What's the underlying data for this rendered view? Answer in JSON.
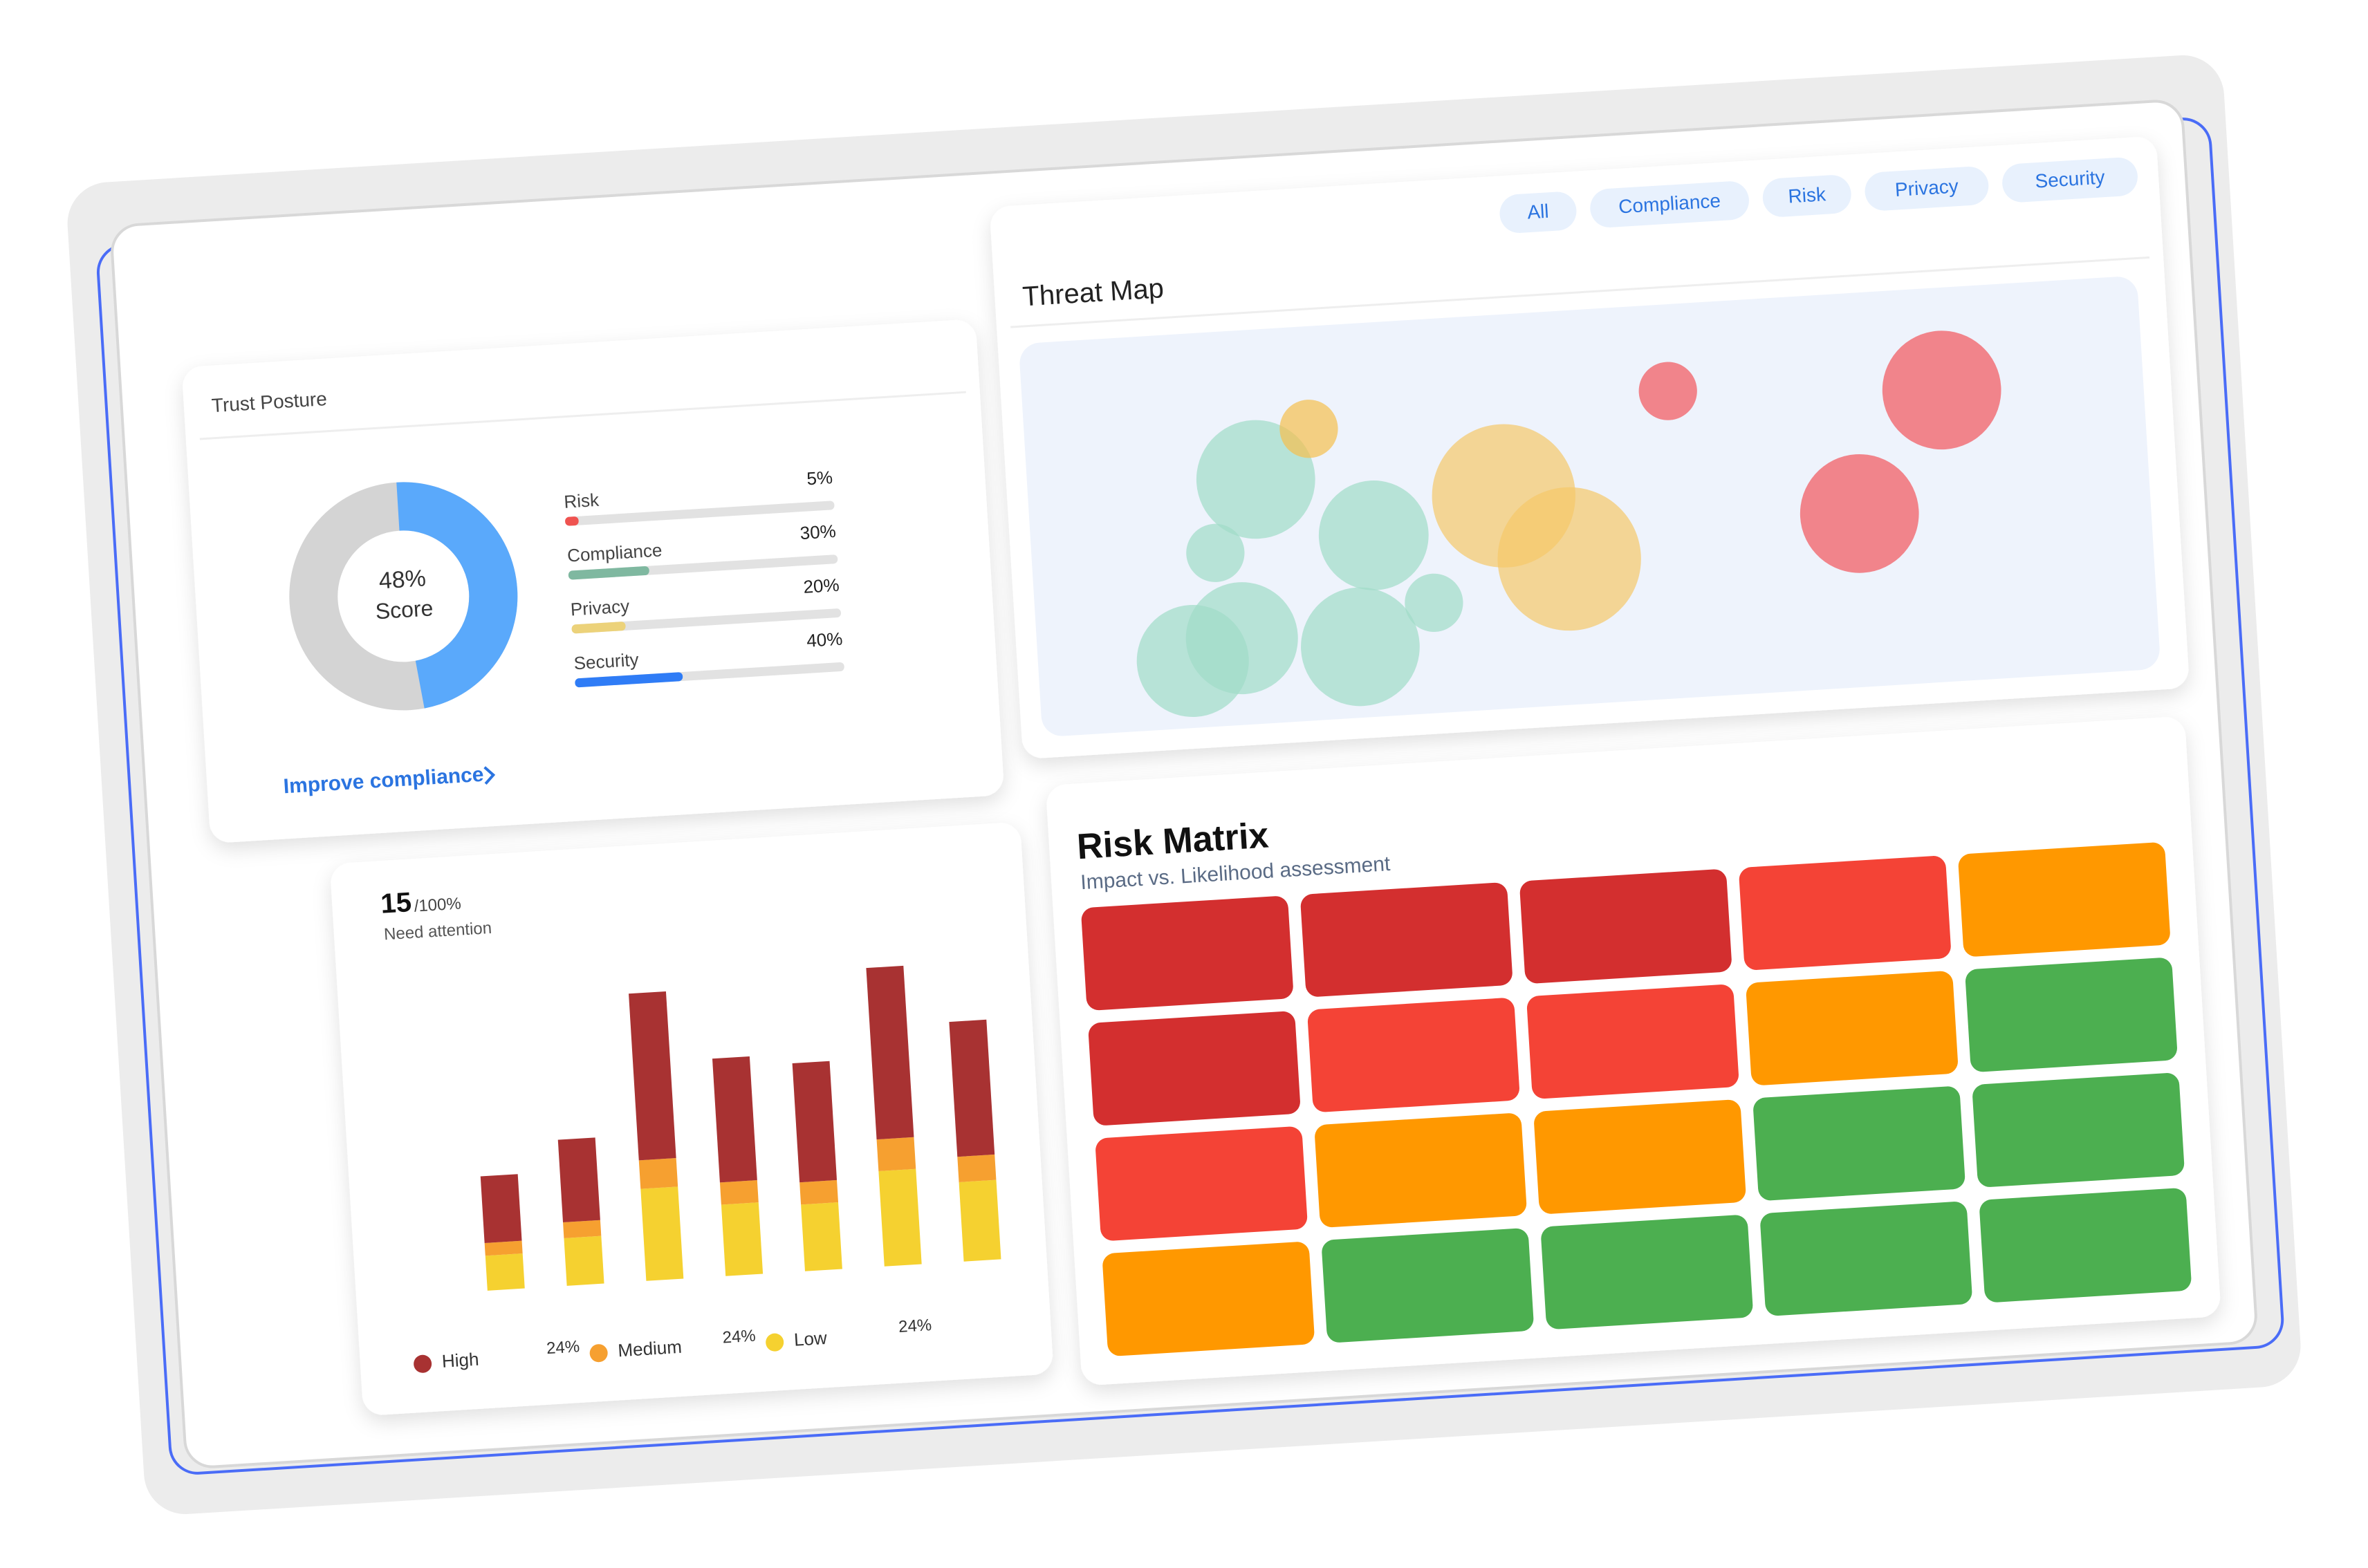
{
  "trust_posture": {
    "title": "Trust Posture",
    "score": {
      "value": 48,
      "label": "48%"
    },
    "score_caption": "Score",
    "score_color": "#5aa9fb",
    "track_color": "#d4d4d4",
    "items": [
      {
        "name": "Risk",
        "value": 5,
        "label": "5%",
        "color": "#ef5350"
      },
      {
        "name": "Compliance",
        "value": 30,
        "label": "30%",
        "color": "#7fb8a0"
      },
      {
        "name": "Privacy",
        "value": 20,
        "label": "20%",
        "color": "#ecd27a"
      },
      {
        "name": "Security",
        "value": 40,
        "label": "40%",
        "color": "#2f7cf6"
      }
    ],
    "link": "Improve compliance"
  },
  "threat_map": {
    "title": "Threat Map",
    "filters": [
      "All",
      "Compliance",
      "Risk",
      "Privacy",
      "Security"
    ],
    "bubbles": [
      {
        "x": 20.4,
        "y": 38,
        "r": 5.3,
        "color": "#9fdcc8"
      },
      {
        "x": 30.6,
        "y": 54,
        "r": 4.9,
        "color": "#9fdcc8"
      },
      {
        "x": 16.4,
        "y": 56,
        "r": 2.6,
        "color": "#9fdcc8"
      },
      {
        "x": 35.6,
        "y": 72,
        "r": 2.6,
        "color": "#9fdcc8"
      },
      {
        "x": 18.3,
        "y": 78,
        "r": 5,
        "color": "#9fdcc8"
      },
      {
        "x": 28.8,
        "y": 82,
        "r": 5.3,
        "color": "#9fdcc8"
      },
      {
        "x": 13.8,
        "y": 83,
        "r": 5,
        "color": "#9fdcc8"
      },
      {
        "x": 25.4,
        "y": 26,
        "r": 2.6,
        "color": "#f5bf4f"
      },
      {
        "x": 42.4,
        "y": 46,
        "r": 6.4,
        "color": "#f5c86a"
      },
      {
        "x": 47.9,
        "y": 63,
        "r": 6.4,
        "color": "#f5c86a"
      },
      {
        "x": 57.6,
        "y": 22,
        "r": 2.6,
        "color": "#f2545b"
      },
      {
        "x": 82,
        "y": 26,
        "r": 5.3,
        "color": "#f2545b"
      },
      {
        "x": 74,
        "y": 56,
        "r": 5.3,
        "color": "#f2545b"
      }
    ]
  },
  "attention": {
    "count": 15,
    "total": "/100%",
    "caption": "Need attention",
    "ylim": [
      0,
      200
    ],
    "series": [
      {
        "name": "High",
        "share": "24%",
        "color": "#a83232",
        "values": [
          42,
          52,
          105,
          78,
          75,
          108,
          85
        ]
      },
      {
        "name": "Medium",
        "share": "24%",
        "color": "#f6a030",
        "values": [
          8,
          10,
          18,
          14,
          14,
          20,
          16
        ]
      },
      {
        "name": "Low",
        "share": "24%",
        "color": "#f5d130",
        "values": [
          22,
          30,
          58,
          45,
          42,
          60,
          50
        ]
      }
    ]
  },
  "risk_matrix": {
    "title": "Risk Matrix",
    "subtitle": "Impact vs. Likelihood assessment",
    "rows": [
      [
        "#d32f2f",
        "#d32f2f",
        "#d32f2f",
        "#f44336",
        "#ff9800"
      ],
      [
        "#d32f2f",
        "#f44336",
        "#f44336",
        "#ff9800",
        "#4caf50"
      ],
      [
        "#f44336",
        "#ff9800",
        "#ff9800",
        "#4caf50",
        "#4caf50"
      ],
      [
        "#ff9800",
        "#4caf50",
        "#4caf50",
        "#4caf50",
        "#4caf50"
      ]
    ]
  }
}
